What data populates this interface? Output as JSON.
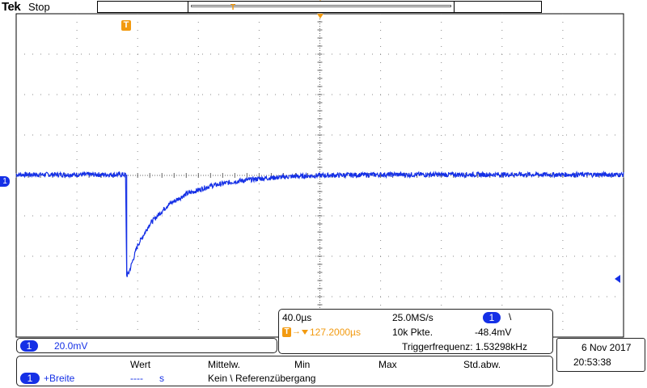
{
  "header": {
    "brand": "Tek",
    "status": "Stop"
  },
  "markers": {
    "trigger_glyph": "T",
    "channel_marker": "1"
  },
  "channel_settings": {
    "channel": "1",
    "scale": "20.0mV"
  },
  "acquisition": {
    "timebase": "40.0µs",
    "sample_rate": "25.0MS/s",
    "trigger_channel": "1",
    "trigger_slope_symbol": "\\",
    "trigger_position": "127.2000µs",
    "record_length": "10k Pkte.",
    "trigger_level": "-48.4mV",
    "trigger_frequency": "Triggerfrequenz: 1.53298kHz"
  },
  "datetime": {
    "date": "6 Nov  2017",
    "time": "20:53:38"
  },
  "measurements": {
    "headers": [
      "Wert",
      "Mittelw.",
      "Min",
      "Max",
      "Std.abw."
    ],
    "rows": [
      {
        "channel": "1",
        "label": "+Breite",
        "value": "----",
        "unit": "s",
        "note": "Kein \\ Referenzübergang"
      }
    ]
  },
  "colors": {
    "trace": "#1530e6",
    "trigger": "#f29a10",
    "background": "#ffffff",
    "grid": "#000000"
  },
  "chart_data": {
    "type": "line",
    "title": "",
    "xlabel": "",
    "ylabel": "",
    "x_divisions": 10,
    "y_divisions": 8,
    "time_per_div_us": 40,
    "volts_per_div_mV": 20,
    "baseline_div": 0,
    "series": [
      {
        "x": [
          0,
          0.5,
          1.0,
          1.5,
          1.8,
          1.82,
          1.85,
          2.0,
          2.2,
          2.5,
          2.8,
          3.2,
          3.6,
          4.0,
          4.5,
          5,
          6,
          7,
          8,
          9,
          10
        ],
        "values": [
          0,
          0,
          0,
          0,
          0,
          -2.5,
          -2.45,
          -1.75,
          -1.22,
          -0.75,
          -0.48,
          -0.28,
          -0.17,
          -0.1,
          -0.05,
          -0.02,
          0,
          0,
          0,
          0,
          0
        ]
      }
    ]
  }
}
